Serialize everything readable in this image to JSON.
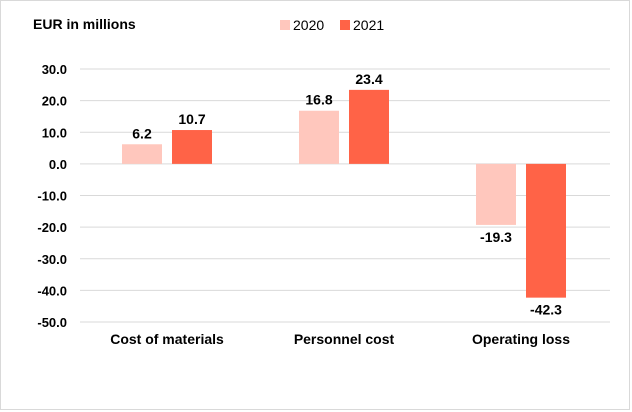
{
  "chart_data": {
    "type": "bar",
    "unit_label": "EUR in millions",
    "categories": [
      "Cost of materials",
      "Personnel cost",
      "Operating loss"
    ],
    "series": [
      {
        "name": "2020",
        "values": [
          6.2,
          16.8,
          -19.3
        ],
        "labels": [
          "6.2",
          "16.8",
          "-19.3"
        ],
        "color": "#ffc7bd"
      },
      {
        "name": "2021",
        "values": [
          10.7,
          23.4,
          -42.3
        ],
        "labels": [
          "10.7",
          "23.4",
          "-42.3"
        ],
        "color": "#ff6347"
      }
    ],
    "ylim": [
      -50,
      30
    ],
    "yticks": [
      30,
      20,
      10,
      0,
      -10,
      -20,
      -30,
      -40,
      -50
    ],
    "ytick_labels": [
      "30.0",
      "20.0",
      "10.0",
      "0.0",
      "-10.0",
      "-20.0",
      "-30.0",
      "-40.0",
      "-50.0"
    ],
    "grid": true,
    "gridline_color": "#d9d9d9",
    "legend_position": "top"
  }
}
